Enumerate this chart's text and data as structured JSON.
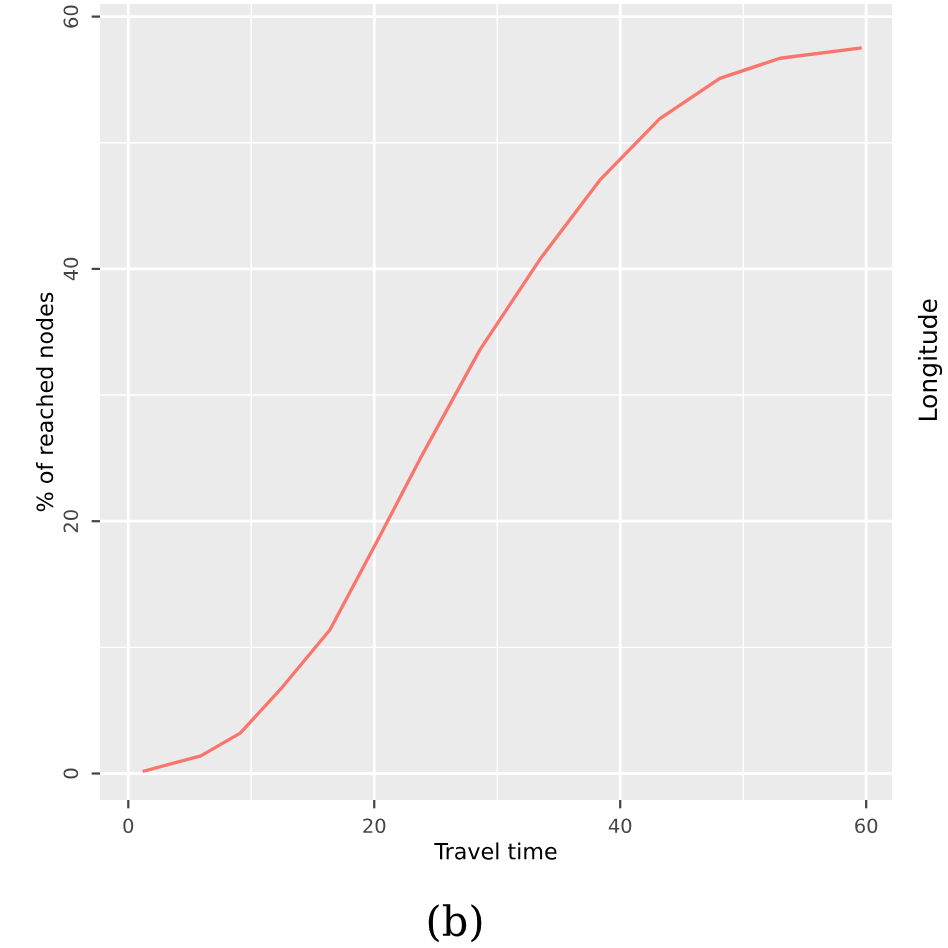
{
  "chart_data": {
    "type": "line",
    "xlabel": "Travel time",
    "ylabel": "% of reached nodes",
    "x": [
      1.3,
      5.9,
      9.1,
      12.4,
      16.4,
      20.5,
      23.7,
      28.6,
      33.5,
      38.4,
      43.2,
      48.1,
      53,
      59.5
    ],
    "series": [
      {
        "color": "#f8766d",
        "values": [
          0.2,
          1.4,
          3.2,
          6.7,
          11.4,
          18.9,
          24.9,
          33.6,
          40.8,
          47.1,
          51.9,
          55.1,
          56.7,
          57.5
        ]
      }
    ],
    "xlim": [
      -2.3,
      62.1
    ],
    "ylim": [
      -2.1,
      61
    ],
    "xticks": [
      0,
      20,
      40,
      60
    ],
    "yticks": [
      0,
      20,
      40,
      60
    ],
    "grid": true,
    "line_style": "solid",
    "annotations": [
      "Longitude",
      "(b)"
    ]
  }
}
